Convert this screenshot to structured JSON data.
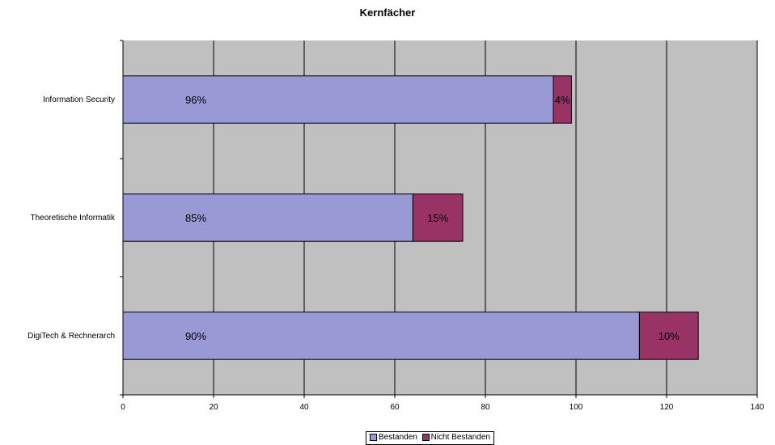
{
  "chart_data": {
    "type": "bar",
    "orientation": "horizontal",
    "stacked": true,
    "title": "Kernfächer",
    "xlabel": "",
    "ylabel": "",
    "xlim": [
      0,
      140
    ],
    "x_ticks": [
      0,
      20,
      40,
      60,
      80,
      100,
      120,
      140
    ],
    "grid": true,
    "legend_position": "bottom",
    "categories": [
      "Information Security",
      "Theoretische Informatik",
      "DigiTech & Rechnerarch"
    ],
    "series": [
      {
        "name": "Bestanden",
        "color": "#9999d6",
        "values": [
          95,
          64,
          114
        ],
        "labels": [
          "96%",
          "85%",
          "90%"
        ]
      },
      {
        "name": "Nicht Bestanden",
        "color": "#993366",
        "values": [
          4,
          11,
          13
        ],
        "labels": [
          "4%",
          "15%",
          "10%"
        ]
      }
    ],
    "colors": {
      "plot_background": "#c0c0c0",
      "gridline": "#000000"
    }
  }
}
